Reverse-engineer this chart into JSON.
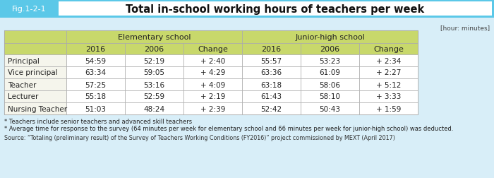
{
  "title": "Total in-school working hours of teachers per week",
  "fig_label": "Fig.1-2-1",
  "unit_label": "[hour: minutes]",
  "col_groups": [
    "Elementary school",
    "Junior-high school"
  ],
  "sub_cols": [
    "2016",
    "2006",
    "Change"
  ],
  "row_labels": [
    "Principal",
    "Vice principal",
    "Teacher",
    "Lecturer",
    "Nursing Teacher"
  ],
  "elementary": [
    [
      "54:59",
      "52:19",
      "+ 2:40"
    ],
    [
      "63:34",
      "59:05",
      "+ 4:29"
    ],
    [
      "57:25",
      "53:16",
      "+ 4:09"
    ],
    [
      "55:18",
      "52:59",
      "+ 2:19"
    ],
    [
      "51:03",
      "48:24",
      "+ 2:39"
    ]
  ],
  "junior_high": [
    [
      "55:57",
      "53:23",
      "+ 2:34"
    ],
    [
      "63:36",
      "61:09",
      "+ 2:27"
    ],
    [
      "63:18",
      "58:06",
      "+ 5:12"
    ],
    [
      "61:43",
      "58:10",
      "+ 3:33"
    ],
    [
      "52:42",
      "50:43",
      "+ 1:59"
    ]
  ],
  "footnotes": [
    "* Teachers include senior teachers and advanced skill teachers",
    "* Average time for response to the survey (64 minutes per week for elementary school and 66 minutes per week for junior-high school) was deducted."
  ],
  "source": "Source: “Totaling (preliminary result) of the Survey of Teachers Working Conditions (FY2016)” project commissioned by MEXT (April 2017)",
  "header_bg": "#c8d86b",
  "title_bar_bg": "#5bc8e8",
  "fig_label_bg": "#5bc8e8",
  "fig_label_text": "#ffffff",
  "title_box_bg": "#ffffff",
  "row_label_bg": "#f5f5ec",
  "data_bg": "#ffffff",
  "border_color": "#aaaaaa",
  "outer_bg": "#d8eef8",
  "footnote_color": "#222222",
  "source_color": "#333333"
}
